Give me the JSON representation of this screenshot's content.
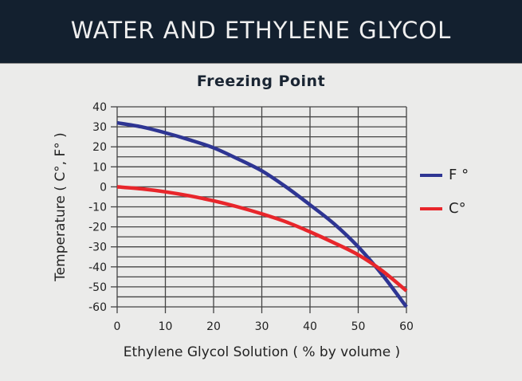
{
  "banner": {
    "title": "WATER AND ETHYLENE GLYCOL"
  },
  "chart_data": {
    "type": "line",
    "title": "Freezing Point",
    "xlabel": "Ethylene Glycol Solution ( % by volume )",
    "ylabel": "Temperature ( C°, F° )",
    "x": [
      0,
      5,
      10,
      15,
      20,
      25,
      30,
      35,
      40,
      45,
      50,
      55,
      60
    ],
    "series": [
      {
        "name": "F °",
        "color": "#2e3593",
        "values": [
          32,
          30,
          27,
          23.5,
          19.5,
          14,
          8,
          0,
          -9,
          -18.5,
          -30,
          -44,
          -60
        ]
      },
      {
        "name": "C°",
        "color": "#e8262b",
        "values": [
          0,
          -1,
          -2.5,
          -4.5,
          -7,
          -10,
          -13.5,
          -17.5,
          -22.5,
          -28,
          -34,
          -42,
          -52
        ]
      }
    ],
    "xlim": [
      0,
      60
    ],
    "ylim": [
      -60,
      40
    ],
    "xticks": [
      0,
      10,
      20,
      30,
      40,
      50,
      60
    ],
    "yticks": [
      40,
      30,
      20,
      10,
      0,
      -10,
      -20,
      -30,
      -40,
      -50,
      -60
    ],
    "grid": true,
    "minor_y_grid_step": 5,
    "legend_position": "right"
  },
  "legend": [
    {
      "label": "F °",
      "color": "#2e3593"
    },
    {
      "label": "C°",
      "color": "#e8262b"
    }
  ]
}
